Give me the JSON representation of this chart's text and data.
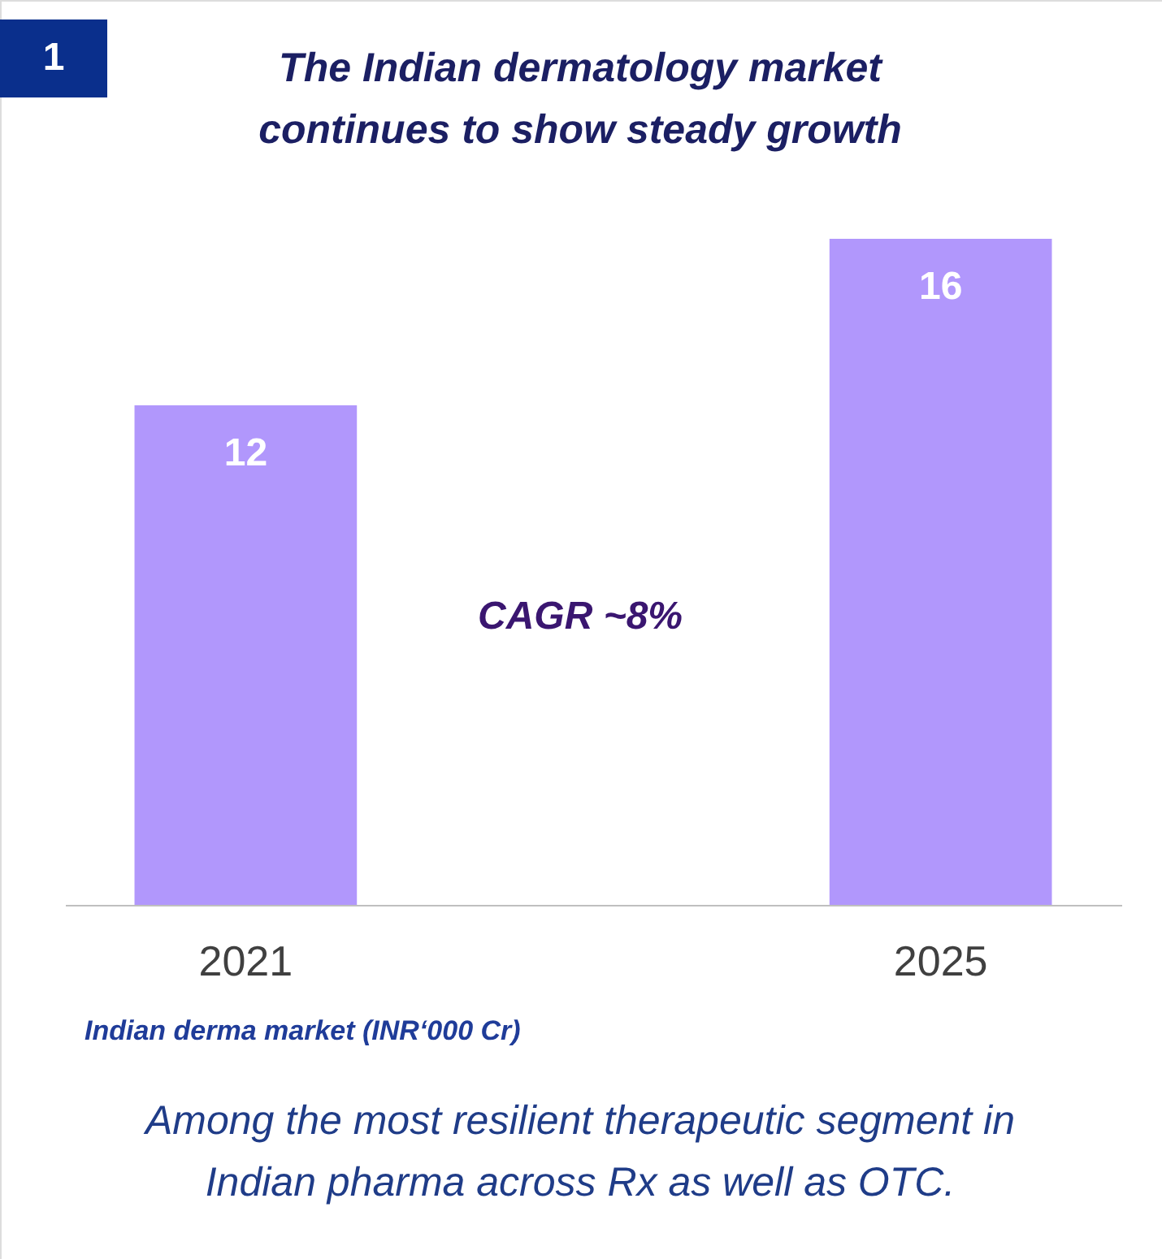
{
  "chart_data": {
    "type": "bar",
    "title": "The Indian dermatology market continues to show steady growth",
    "categories": [
      "2021",
      "2025"
    ],
    "values": [
      12,
      16
    ],
    "color": "#b197fc",
    "data_labels": true,
    "annotations": [
      "1",
      "CAGR ~8%",
      "Indian derma market (INR‘000 Cr)",
      "Among the most resilient therapeutic segment in Indian pharma across Rx as well as OTC."
    ]
  }
}
